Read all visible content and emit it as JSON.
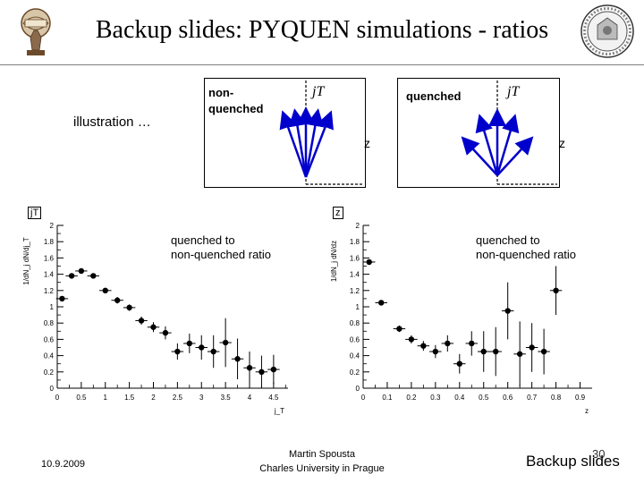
{
  "slide": {
    "title": "Backup slides: PYQUEN simulations - ratios",
    "illustration_label": "illustration …",
    "footer": {
      "date": "10.9.2009",
      "author": "Martin Spousta",
      "institution": "Charles University in Prague",
      "section": "Backup slides",
      "page": "30"
    }
  },
  "diagrams": {
    "left": {
      "label_line1": "non-",
      "label_line2": "quenched",
      "axis_jt": "jT",
      "axis_z": "z"
    },
    "right": {
      "label": "quenched",
      "axis_jt": "jT",
      "axis_z": "z"
    }
  },
  "plots": {
    "left": {
      "corner_label": "jT",
      "note_line1": "quenched to",
      "note_line2": "non-quenched ratio"
    },
    "right": {
      "corner_label": "z",
      "note_line1": "quenched to",
      "note_line2": "non-quenched ratio"
    }
  },
  "chart_data": [
    {
      "type": "scatter",
      "title": "",
      "xlabel": "j_T",
      "ylabel": "1/dN_j dN/dj_T",
      "xlim": [
        0,
        4.8
      ],
      "ylim": [
        0,
        2
      ],
      "x_ticks": [
        "0",
        "0.5",
        "1",
        "1.5",
        "2",
        "2.5",
        "3",
        "3.5",
        "4",
        "4.5"
      ],
      "y_ticks": [
        "0",
        "0.2",
        "0.4",
        "0.6",
        "0.8",
        "1",
        "1.2",
        "1.4",
        "1.6",
        "1.8",
        "2"
      ],
      "series": [
        {
          "x": [
            0.1,
            0.3,
            0.5,
            0.75,
            1.0,
            1.25,
            1.5,
            1.75,
            2.0,
            2.25,
            2.5,
            2.75,
            3.0,
            3.25,
            3.5,
            3.75,
            4.0,
            4.25,
            4.5
          ],
          "y": [
            1.1,
            1.38,
            1.44,
            1.38,
            1.2,
            1.08,
            0.99,
            0.83,
            0.75,
            0.68,
            0.45,
            0.55,
            0.5,
            0.45,
            0.56,
            0.36,
            0.25,
            0.2,
            0.23
          ],
          "err": [
            0.03,
            0.03,
            0.03,
            0.03,
            0.03,
            0.04,
            0.04,
            0.05,
            0.06,
            0.08,
            0.1,
            0.12,
            0.15,
            0.2,
            0.3,
            0.25,
            0.2,
            0.2,
            0.18
          ]
        }
      ]
    },
    {
      "type": "scatter",
      "title": "",
      "xlabel": "z",
      "ylabel": "1/dN_j dN/dz",
      "xlim": [
        0,
        0.95
      ],
      "ylim": [
        0,
        2
      ],
      "x_ticks": [
        "0",
        "0.1",
        "0.2",
        "0.3",
        "0.4",
        "0.5",
        "0.6",
        "0.7",
        "0.8",
        "0.9"
      ],
      "y_ticks": [
        "0",
        "0.2",
        "0.4",
        "0.6",
        "0.8",
        "1",
        "1.2",
        "1.4",
        "1.6",
        "1.8",
        "2"
      ],
      "series": [
        {
          "x": [
            0.025,
            0.075,
            0.15,
            0.2,
            0.25,
            0.3,
            0.35,
            0.4,
            0.45,
            0.5,
            0.55,
            0.6,
            0.65,
            0.7,
            0.75,
            0.8
          ],
          "y": [
            1.55,
            1.05,
            0.73,
            0.6,
            0.52,
            0.45,
            0.55,
            0.3,
            0.55,
            0.45,
            0.45,
            0.95,
            0.42,
            0.5,
            0.45,
            1.2
          ],
          "err": [
            0.03,
            0.03,
            0.04,
            0.05,
            0.06,
            0.08,
            0.1,
            0.12,
            0.15,
            0.25,
            0.3,
            0.35,
            0.4,
            0.3,
            0.28,
            0.3
          ]
        }
      ]
    }
  ]
}
